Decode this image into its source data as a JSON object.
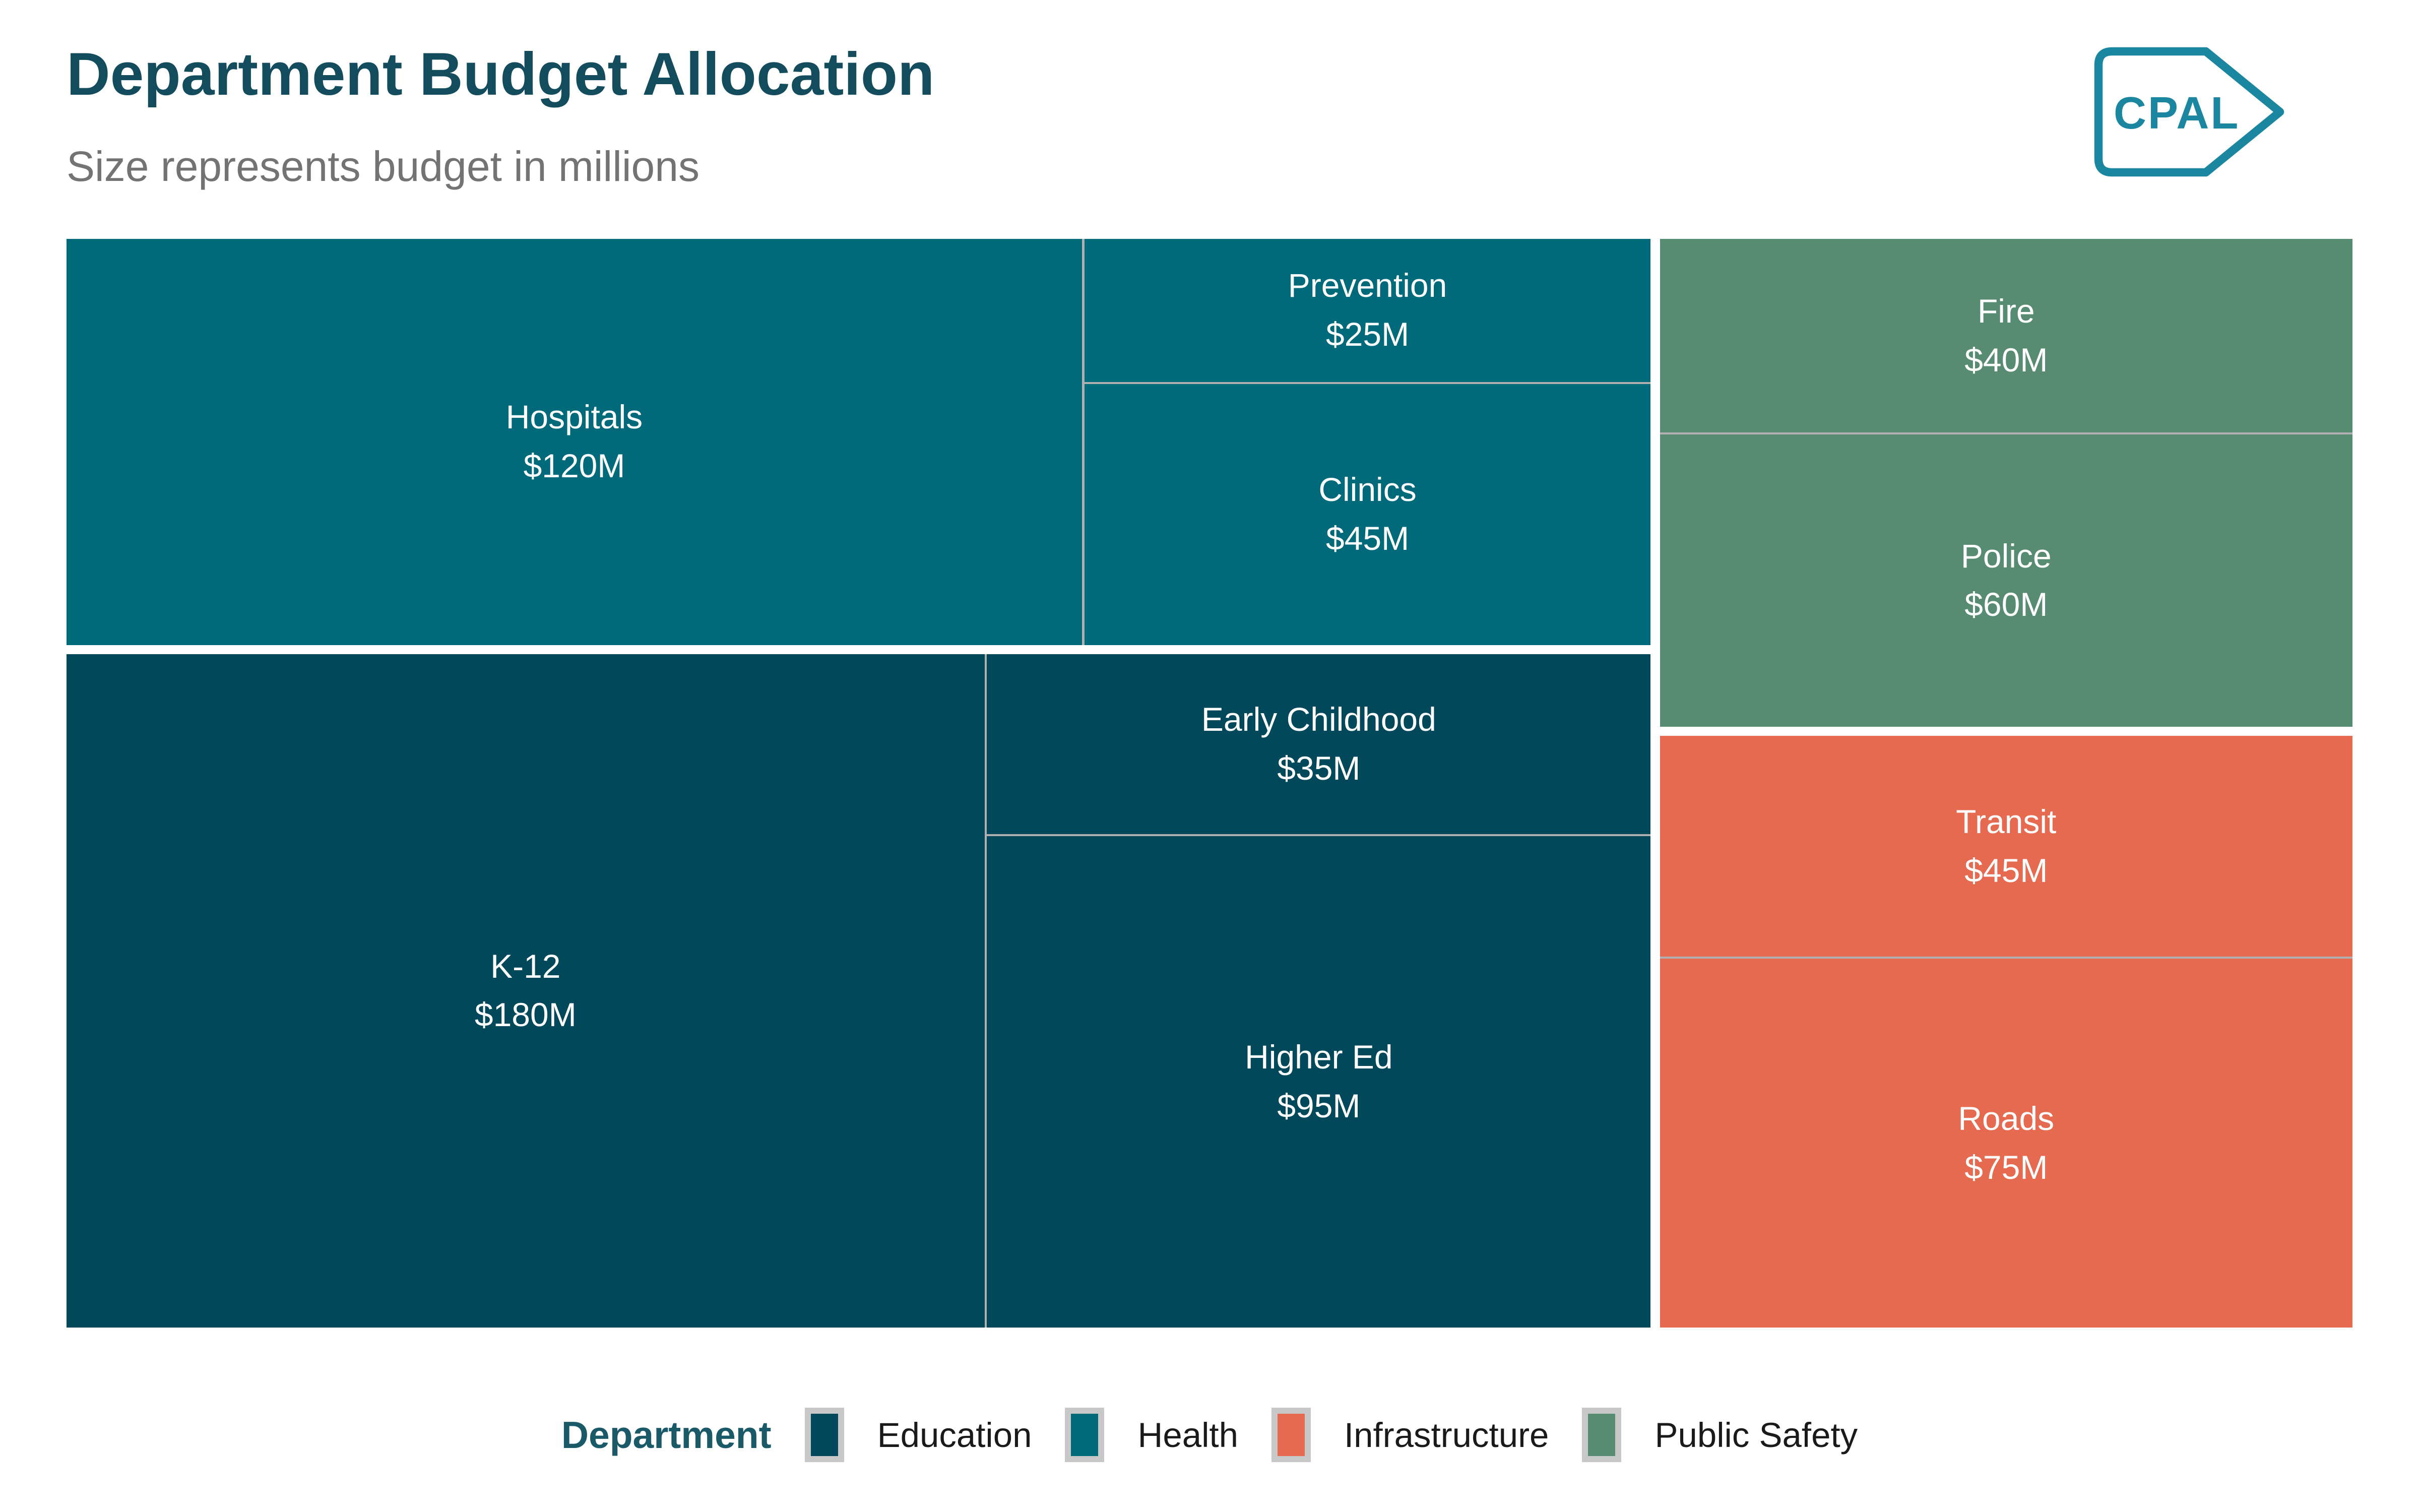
{
  "header": {
    "title": "Department Budget Allocation",
    "subtitle": "Size represents budget in millions"
  },
  "logo": {
    "text": "CPAL",
    "color": "#1a86a0"
  },
  "legend": {
    "title": "Department",
    "position": "bottom-center",
    "entries": [
      {
        "label": "Education",
        "color": "#00485a"
      },
      {
        "label": "Health",
        "color": "#006a7a"
      },
      {
        "label": "Infrastructure",
        "color": "#e66a50"
      },
      {
        "label": "Public Safety",
        "color": "#588c72"
      }
    ]
  },
  "chart_data": {
    "type": "treemap",
    "title": "Department Budget Allocation",
    "subtitle": "Size represents budget in millions",
    "unit": "USD millions",
    "total": 720,
    "seam_color": "#b0b0b0",
    "group_gap_color": "#ffffff",
    "label_text_color": "#ffffff",
    "groups": [
      {
        "name": "Health",
        "color": "#006a7a",
        "total": 190,
        "rect": {
          "l": 0,
          "t": 0,
          "w": 69.3,
          "h": 37.3
        },
        "children": [
          {
            "name": "Hospitals",
            "value": 120,
            "value_label": "$120M",
            "rect": {
              "l": 0,
              "t": 0,
              "w": 64.1,
              "h": 100
            }
          },
          {
            "name": "Prevention",
            "value": 25,
            "value_label": "$25M",
            "rect": {
              "l": 64.25,
              "t": 0,
              "w": 35.75,
              "h": 35.2
            }
          },
          {
            "name": "Clinics",
            "value": 45,
            "value_label": "$45M",
            "rect": {
              "l": 64.25,
              "t": 35.7,
              "w": 35.75,
              "h": 64.3
            }
          }
        ]
      },
      {
        "name": "Education",
        "color": "#00485a",
        "total": 310,
        "rect": {
          "l": 0,
          "t": 38.14,
          "w": 69.3,
          "h": 61.86
        },
        "children": [
          {
            "name": "K-12",
            "value": 180,
            "value_label": "$180M",
            "rect": {
              "l": 0,
              "t": 0,
              "w": 57.95,
              "h": 100
            }
          },
          {
            "name": "Early Childhood",
            "value": 35,
            "value_label": "$35M",
            "rect": {
              "l": 58.1,
              "t": 0,
              "w": 41.9,
              "h": 26.7
            }
          },
          {
            "name": "Higher Ed",
            "value": 95,
            "value_label": "$95M",
            "rect": {
              "l": 58.1,
              "t": 27.0,
              "w": 41.9,
              "h": 73.0
            }
          }
        ]
      },
      {
        "name": "Public Safety",
        "color": "#588c72",
        "total": 100,
        "rect": {
          "l": 69.7,
          "t": 0,
          "w": 30.3,
          "h": 44.81
        },
        "children": [
          {
            "name": "Fire",
            "value": 40,
            "value_label": "$40M",
            "rect": {
              "l": 0,
              "t": 0,
              "w": 100,
              "h": 39.7
            }
          },
          {
            "name": "Police",
            "value": 60,
            "value_label": "$60M",
            "rect": {
              "l": 0,
              "t": 40.1,
              "w": 100,
              "h": 59.9
            }
          }
        ]
      },
      {
        "name": "Infrastructure",
        "color": "#e66a50",
        "total": 120,
        "rect": {
          "l": 69.7,
          "t": 45.64,
          "w": 30.3,
          "h": 54.36
        },
        "children": [
          {
            "name": "Transit",
            "value": 45,
            "value_label": "$45M",
            "rect": {
              "l": 0,
              "t": 0,
              "w": 100,
              "h": 37.35
            }
          },
          {
            "name": "Roads",
            "value": 75,
            "value_label": "$75M",
            "rect": {
              "l": 0,
              "t": 37.7,
              "w": 100,
              "h": 62.3
            }
          }
        ]
      }
    ]
  }
}
